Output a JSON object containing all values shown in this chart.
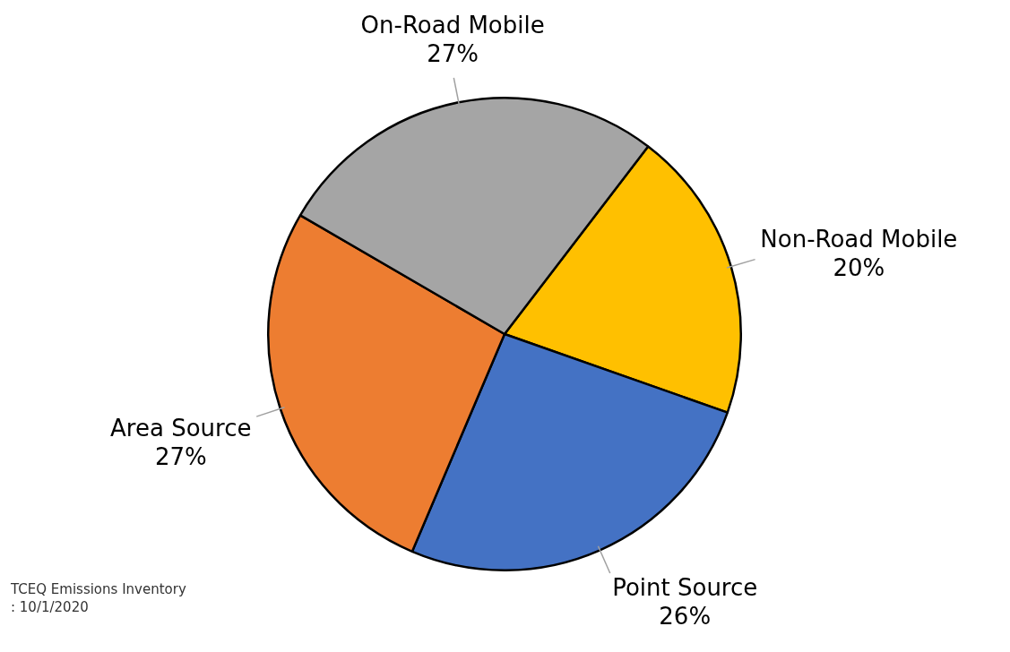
{
  "chart_data": {
    "type": "pie",
    "categories": [
      "Non-Road Mobile",
      "Point Source",
      "Area Source",
      "On-Road Mobile"
    ],
    "values": [
      20,
      26,
      27,
      27
    ],
    "value_labels": [
      "20%",
      "26%",
      "27%",
      "27%"
    ],
    "colors": [
      "#ffc000",
      "#4472c4",
      "#ed7d31",
      "#a5a5a5"
    ],
    "legend": false,
    "annotations": [
      "TCEQ Emissions Inventory",
      ": 10/1/2020"
    ]
  }
}
